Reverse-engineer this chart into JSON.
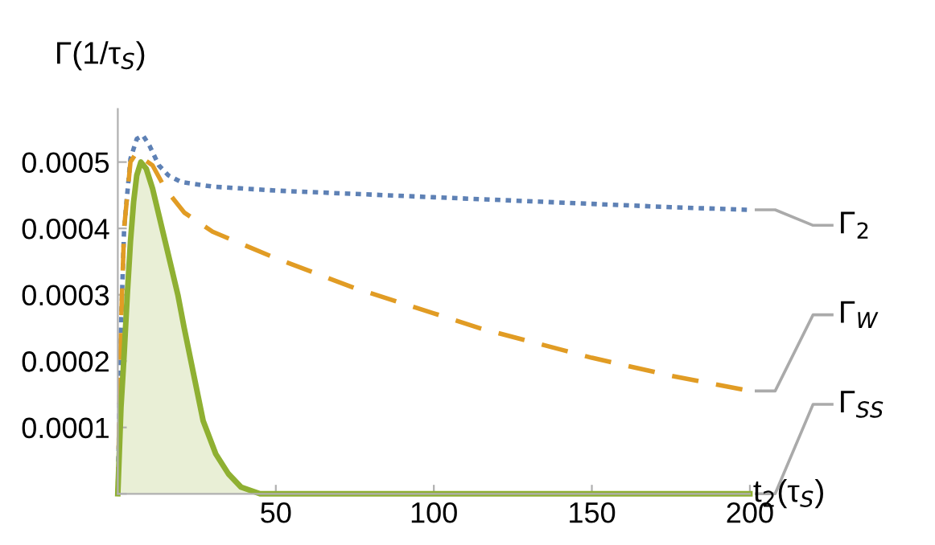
{
  "chart_data": {
    "type": "line",
    "xlabel": "t$_{2}$(τ$_{S}$)",
    "ylabel": "Γ(1/τ$_{S}$)",
    "xlim": [
      0,
      200
    ],
    "ylim": [
      0,
      0.00058
    ],
    "xticks": [
      50,
      100,
      150,
      200
    ],
    "yticks": [
      {
        "value": 0,
        "label": null
      },
      0.0001,
      0.0002,
      0.0003,
      0.0004,
      0.0005
    ],
    "grid": false,
    "marker": "none",
    "series": [
      {
        "name": "Γ$_{2}$",
        "color": "#5e81b5",
        "line_style": "dotted",
        "x": [
          0,
          1,
          2,
          4,
          6,
          8,
          10,
          13,
          16,
          20,
          30,
          50,
          75,
          100,
          125,
          150,
          175,
          200
        ],
        "values": [
          0,
          0.00025,
          0.0004,
          0.000505,
          0.000535,
          0.00054,
          0.000525,
          0.000495,
          0.00048,
          0.00047,
          0.000463,
          0.000457,
          0.000452,
          0.000447,
          0.000442,
          0.000437,
          0.000432,
          0.000428
        ]
      },
      {
        "name": "Γ$_{W}$",
        "color": "#e19c24",
        "line_style": "dashed",
        "x": [
          0,
          1,
          2,
          4,
          6,
          8,
          11,
          15,
          21,
          30,
          50,
          75,
          100,
          115,
          150,
          175,
          200
        ],
        "values": [
          0,
          0.00025,
          0.0004,
          0.0005,
          0.000515,
          0.000505,
          0.000495,
          0.00046,
          0.000424,
          0.000395,
          0.000355,
          0.00031,
          0.000272,
          0.000249,
          0.000205,
          0.000178,
          0.000155
        ]
      },
      {
        "name": "Γ$_{SS}$",
        "type": "area",
        "color": "#8fb032",
        "line_style": "solid",
        "x": [
          0,
          1,
          2,
          3,
          4,
          5,
          6,
          7.3,
          9,
          11,
          13,
          15,
          17,
          19,
          21,
          24,
          27,
          31,
          35,
          39,
          45,
          60,
          100,
          150,
          200
        ],
        "values": [
          0,
          0.00013,
          0.00021,
          0.0003,
          0.00038,
          0.00044,
          0.00048,
          0.0005,
          0.00049,
          0.00046,
          0.00042,
          0.00038,
          0.00034,
          0.0003,
          0.00025,
          0.00018,
          0.00011,
          6e-05,
          3e-05,
          1e-05,
          0,
          0,
          0,
          0,
          0
        ]
      }
    ]
  }
}
